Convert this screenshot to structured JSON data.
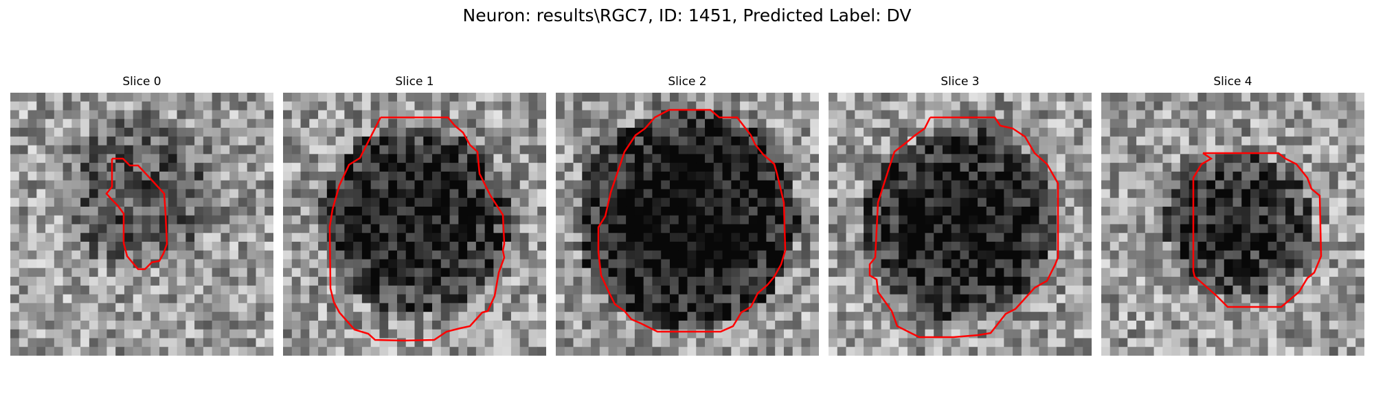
{
  "title": "Neuron: results\\RGC7, ID: 1451, Predicted Label: DV",
  "colors": {
    "background": "#ffffff",
    "contour": "#ff0000"
  },
  "panels": [
    {
      "title": "Slice 0",
      "dark_center": [
        0.5,
        0.38
      ],
      "dark_radius": 0.3,
      "dark_strength": 0.3,
      "seed": 11
    },
    {
      "title": "Slice 1",
      "dark_center": [
        0.5,
        0.48
      ],
      "dark_radius": 0.36,
      "dark_strength": 0.55,
      "seed": 23
    },
    {
      "title": "Slice 2",
      "dark_center": [
        0.5,
        0.48
      ],
      "dark_radius": 0.42,
      "dark_strength": 0.65,
      "seed": 37
    },
    {
      "title": "Slice 3",
      "dark_center": [
        0.5,
        0.5
      ],
      "dark_radius": 0.36,
      "dark_strength": 0.6,
      "seed": 41
    },
    {
      "title": "Slice 4",
      "dark_center": [
        0.52,
        0.5
      ],
      "dark_radius": 0.28,
      "dark_strength": 0.5,
      "seed": 53
    }
  ]
}
